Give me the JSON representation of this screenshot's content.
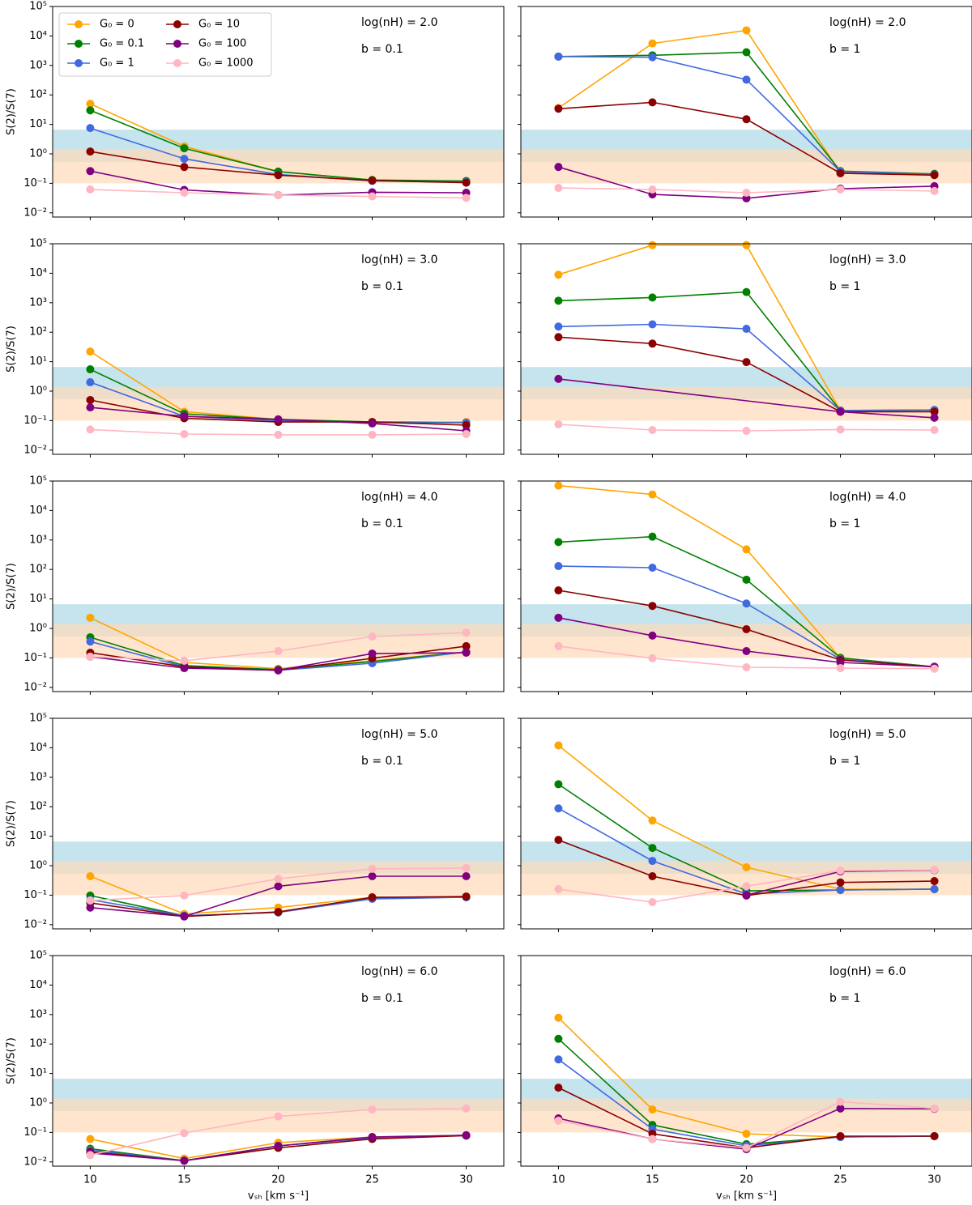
{
  "chart_data": [
    {
      "type": "line",
      "annotations": [
        "log(nH) = 2.0",
        "b = 0.1"
      ],
      "ylabel": "S(2)/S(7)",
      "log_scale": true,
      "legend": "upper left",
      "legend_ncol": 2,
      "x": [
        10,
        15,
        20,
        25,
        30
      ],
      "xlim": [
        8,
        32
      ],
      "xticks": [
        10,
        15,
        20,
        25,
        30
      ],
      "ylim": [
        0.0072,
        100000
      ],
      "yticks": [
        {
          "value": 0.01,
          "label": "10⁻²"
        },
        {
          "value": 0.1,
          "label": "10⁻¹"
        },
        {
          "value": 1,
          "label": "10⁰"
        },
        {
          "value": 10,
          "label": "10¹"
        },
        {
          "value": 100,
          "label": "10²"
        },
        {
          "value": 1000,
          "label": "10³"
        },
        {
          "value": 10000,
          "label": "10⁴"
        },
        {
          "value": 100000,
          "label": "10⁵"
        }
      ],
      "bands": [
        {
          "range": [
            0.53,
            6.6
          ],
          "color": "#add8e6"
        },
        {
          "range": [
            0.1,
            1.4
          ],
          "color": "#ffdab9"
        }
      ],
      "series": [
        {
          "name": "G₀ = 0",
          "color": "#ffa500",
          "values": [
            50,
            1.8,
            0.25,
            0.13,
            0.11
          ]
        },
        {
          "name": "G₀ = 0.1",
          "color": "#008000",
          "values": [
            30,
            1.55,
            0.25,
            0.13,
            0.12
          ]
        },
        {
          "name": "G₀ = 1",
          "color": "#4169e1",
          "values": [
            7.5,
            0.68,
            0.2,
            0.12,
            0.11
          ]
        },
        {
          "name": "G₀ = 10",
          "color": "#8b0000",
          "values": [
            1.2,
            0.36,
            0.19,
            0.125,
            0.105
          ]
        },
        {
          "name": "G₀ = 100",
          "color": "#800080",
          "values": [
            0.26,
            0.06,
            0.04,
            0.05,
            0.048
          ]
        },
        {
          "name": "G₀ = 1000",
          "color": "#ffb6c1",
          "values": [
            0.062,
            0.048,
            0.04,
            0.036,
            0.032
          ]
        }
      ]
    },
    {
      "type": "line",
      "annotations": [
        "log(nH) = 2.0",
        "b = 1"
      ],
      "log_scale": true,
      "x": [
        10,
        15,
        20,
        25,
        30
      ],
      "xlim": [
        8,
        32
      ],
      "xticks": [
        10,
        15,
        20,
        25,
        30
      ],
      "ylim": [
        0.0072,
        100000
      ],
      "yticks": [
        0.01,
        0.1,
        1,
        10,
        100,
        1000,
        10000,
        100000
      ],
      "series": [
        {
          "values": [
            36,
            5600,
            15500,
            0.23,
            0.2
          ]
        },
        {
          "values": [
            2000,
            2200,
            2800,
            0.26,
            0.21
          ]
        },
        {
          "values": [
            2000,
            1900,
            330,
            0.25,
            0.2
          ]
        },
        {
          "values": [
            34,
            56,
            15,
            0.22,
            0.19
          ]
        },
        {
          "values": [
            0.36,
            0.042,
            0.031,
            0.066,
            0.08
          ]
        },
        {
          "values": [
            0.07,
            0.062,
            0.048,
            0.062,
            0.055
          ]
        }
      ]
    },
    {
      "type": "line",
      "annotations": [
        "log(nH) = 3.0",
        "b = 0.1"
      ],
      "ylabel": "S(2)/S(7)",
      "log_scale": true,
      "x": [
        10,
        15,
        20,
        25,
        30
      ],
      "xlim": [
        8,
        32
      ],
      "xticks": [
        10,
        15,
        20,
        25,
        30
      ],
      "ylim": [
        0.0072,
        100000
      ],
      "yticks": [
        {
          "value": 0.01,
          "label": "10⁻²"
        },
        {
          "value": 0.1,
          "label": "10⁻¹"
        },
        {
          "value": 1,
          "label": "10⁰"
        },
        {
          "value": 10,
          "label": "10¹"
        },
        {
          "value": 100,
          "label": "10²"
        },
        {
          "value": 1000,
          "label": "10³"
        },
        {
          "value": 10000,
          "label": "10⁴"
        },
        {
          "value": 100000,
          "label": "10⁵"
        }
      ],
      "series": [
        {
          "values": [
            22,
            0.2,
            0.11,
            0.09,
            0.09
          ]
        },
        {
          "values": [
            5.5,
            0.17,
            0.11,
            0.09,
            0.085
          ]
        },
        {
          "values": [
            2,
            0.14,
            0.1,
            0.085,
            0.085
          ]
        },
        {
          "values": [
            0.5,
            0.12,
            0.09,
            0.09,
            0.07
          ]
        },
        {
          "values": [
            0.28,
            0.14,
            0.11,
            0.08,
            0.045
          ]
        },
        {
          "values": [
            0.05,
            0.035,
            0.033,
            0.033,
            0.035
          ]
        }
      ]
    },
    {
      "type": "line",
      "annotations": [
        "log(nH) = 3.0",
        "b = 1"
      ],
      "log_scale": true,
      "x": [
        10,
        15,
        20,
        25,
        30
      ],
      "xlim": [
        8,
        32
      ],
      "xticks": [
        10,
        15,
        20,
        25,
        30
      ],
      "ylim": [
        0.0072,
        100000
      ],
      "yticks": [
        0.01,
        0.1,
        1,
        10,
        100,
        1000,
        10000,
        100000
      ],
      "series": [
        {
          "values": [
            8900,
            90000,
            90000,
            0.22,
            0.22
          ]
        },
        {
          "values": [
            1170,
            1500,
            2300,
            0.22,
            0.23
          ]
        },
        {
          "values": [
            155,
            185,
            130,
            0.22,
            0.23
          ]
        },
        {
          "values": [
            68,
            41,
            9.7,
            0.2,
            0.2
          ]
        },
        {
          "x": [
            10,
            25,
            30
          ],
          "values": [
            2.6,
            0.2,
            0.125
          ]
        },
        {
          "values": [
            0.075,
            0.048,
            0.045,
            0.05,
            0.048
          ]
        }
      ]
    },
    {
      "type": "line",
      "annotations": [
        "log(nH) = 4.0",
        "b = 0.1"
      ],
      "ylabel": "S(2)/S(7)",
      "log_scale": true,
      "x": [
        10,
        15,
        20,
        25,
        30
      ],
      "xlim": [
        8,
        32
      ],
      "xticks": [
        10,
        15,
        20,
        25,
        30
      ],
      "ylim": [
        0.0072,
        100000
      ],
      "yticks": [
        {
          "value": 0.01,
          "label": "10⁻²"
        },
        {
          "value": 0.1,
          "label": "10⁻¹"
        },
        {
          "value": 1,
          "label": "10⁰"
        },
        {
          "value": 10,
          "label": "10¹"
        },
        {
          "value": 100,
          "label": "10²"
        },
        {
          "value": 1000,
          "label": "10³"
        },
        {
          "value": 10000,
          "label": "10⁴"
        },
        {
          "value": 100000,
          "label": "10⁵"
        }
      ],
      "series": [
        {
          "values": [
            2.3,
            0.07,
            0.043,
            0.08,
            0.16
          ]
        },
        {
          "values": [
            0.5,
            0.055,
            0.04,
            0.075,
            0.16
          ]
        },
        {
          "values": [
            0.36,
            0.05,
            0.038,
            0.066,
            0.16
          ]
        },
        {
          "values": [
            0.15,
            0.05,
            0.038,
            0.097,
            0.25
          ]
        },
        {
          "values": [
            0.11,
            0.045,
            0.038,
            0.14,
            0.15
          ]
        },
        {
          "values": [
            0.11,
            0.08,
            0.17,
            0.53,
            0.72
          ]
        }
      ]
    },
    {
      "type": "line",
      "annotations": [
        "log(nH) = 4.0",
        "b = 1"
      ],
      "log_scale": true,
      "x": [
        10,
        15,
        20,
        25,
        30
      ],
      "xlim": [
        8,
        32
      ],
      "xticks": [
        10,
        15,
        20,
        25,
        30
      ],
      "ylim": [
        0.0072,
        100000
      ],
      "yticks": [
        0.01,
        0.1,
        1,
        10,
        100,
        1000,
        10000,
        100000
      ],
      "series": [
        {
          "values": [
            70000,
            35000,
            480,
            0.1,
            0.05
          ]
        },
        {
          "values": [
            850,
            1300,
            45,
            0.1,
            0.05
          ]
        },
        {
          "values": [
            130,
            115,
            7,
            0.09,
            0.05
          ]
        },
        {
          "values": [
            19.5,
            5.8,
            0.94,
            0.085,
            0.05
          ]
        },
        {
          "values": [
            2.3,
            0.57,
            0.17,
            0.07,
            0.05
          ]
        },
        {
          "values": [
            0.25,
            0.097,
            0.048,
            0.045,
            0.043
          ]
        }
      ]
    },
    {
      "type": "line",
      "annotations": [
        "log(nH) = 5.0",
        "b = 0.1"
      ],
      "ylabel": "S(2)/S(7)",
      "log_scale": true,
      "x": [
        10,
        15,
        20,
        25,
        30
      ],
      "xlim": [
        8,
        32
      ],
      "xticks": [
        10,
        15,
        20,
        25,
        30
      ],
      "ylim": [
        0.0072,
        100000
      ],
      "yticks": [
        {
          "value": 0.01,
          "label": "10⁻²"
        },
        {
          "value": 0.1,
          "label": "10⁻¹"
        },
        {
          "value": 1,
          "label": "10⁰"
        },
        {
          "value": 10,
          "label": "10¹"
        },
        {
          "value": 100,
          "label": "10²"
        },
        {
          "value": 1000,
          "label": "10³"
        },
        {
          "value": 10000,
          "label": "10⁴"
        },
        {
          "value": 100000,
          "label": "10⁵"
        }
      ],
      "series": [
        {
          "values": [
            0.44,
            0.023,
            0.038,
            0.085,
            0.09
          ]
        },
        {
          "values": [
            0.097,
            0.02,
            0.026,
            0.08,
            0.085
          ]
        },
        {
          "values": [
            0.07,
            0.02,
            0.026,
            0.075,
            0.085
          ]
        },
        {
          "values": [
            0.055,
            0.019,
            0.027,
            0.085,
            0.09
          ]
        },
        {
          "values": [
            0.038,
            0.019,
            0.2,
            0.44,
            0.44
          ]
        },
        {
          "values": [
            0.066,
            0.097,
            0.36,
            0.78,
            0.83
          ]
        }
      ]
    },
    {
      "type": "line",
      "annotations": [
        "log(nH) = 5.0",
        "b = 1"
      ],
      "log_scale": true,
      "x": [
        10,
        15,
        20,
        25,
        30
      ],
      "xlim": [
        8,
        32
      ],
      "xticks": [
        10,
        15,
        20,
        25,
        30
      ],
      "ylim": [
        0.0072,
        100000
      ],
      "yticks": [
        0.01,
        0.1,
        1,
        10,
        100,
        1000,
        10000,
        100000
      ],
      "series": [
        {
          "values": [
            12000,
            34,
            0.88,
            0.16,
            0.16
          ]
        },
        {
          "values": [
            580,
            4,
            0.14,
            0.15,
            0.16
          ]
        },
        {
          "values": [
            88,
            1.45,
            0.11,
            0.15,
            0.16
          ]
        },
        {
          "values": [
            7.5,
            0.44,
            0.097,
            0.27,
            0.3
          ]
        },
        {
          "x": [
            20,
            25,
            30
          ],
          "values": [
            0.1,
            0.64,
            0.7
          ]
        },
        {
          "values": [
            0.16,
            0.058,
            0.2,
            0.68,
            0.72
          ]
        }
      ]
    },
    {
      "type": "line",
      "annotations": [
        "log(nH) = 6.0",
        "b = 0.1"
      ],
      "ylabel": "S(2)/S(7)",
      "xlabel": "vₛₕ [km s⁻¹]",
      "log_scale": true,
      "x": [
        10,
        15,
        20,
        25,
        30
      ],
      "xlim": [
        8,
        32
      ],
      "xticks": [
        10,
        15,
        20,
        25,
        30
      ],
      "ylim": [
        0.0072,
        100000
      ],
      "yticks": [
        {
          "value": 0.01,
          "label": "10⁻²"
        },
        {
          "value": 0.1,
          "label": "10⁻¹"
        },
        {
          "value": 1,
          "label": "10⁰"
        },
        {
          "value": 10,
          "label": "10¹"
        },
        {
          "value": 100,
          "label": "10²"
        },
        {
          "value": 1000,
          "label": "10³"
        },
        {
          "value": 10000,
          "label": "10⁴"
        },
        {
          "value": 100000,
          "label": "10⁵"
        }
      ],
      "series": [
        {
          "values": [
            0.06,
            0.013,
            0.045,
            0.07,
            0.08
          ]
        },
        {
          "values": [
            0.028,
            0.011,
            0.035,
            0.065,
            0.08
          ]
        },
        {
          "values": [
            0.025,
            0.011,
            0.035,
            0.065,
            0.08
          ]
        },
        {
          "values": [
            0.022,
            0.011,
            0.03,
            0.06,
            0.078
          ]
        },
        {
          "values": [
            0.02,
            0.011,
            0.035,
            0.07,
            0.08
          ]
        },
        {
          "values": [
            0.017,
            0.095,
            0.35,
            0.6,
            0.65
          ]
        }
      ]
    },
    {
      "type": "line",
      "annotations": [
        "log(nH) = 6.0",
        "b = 1"
      ],
      "xlabel": "vₛₕ [km s⁻¹]",
      "log_scale": true,
      "x": [
        10,
        15,
        20,
        25,
        30
      ],
      "xlim": [
        8,
        32
      ],
      "xticks": [
        10,
        15,
        20,
        25,
        30
      ],
      "ylim": [
        0.0072,
        100000
      ],
      "yticks": [
        0.01,
        0.1,
        1,
        10,
        100,
        1000,
        10000,
        100000
      ],
      "series": [
        {
          "values": [
            780,
            0.6,
            0.09,
            0.07,
            0.075
          ]
        },
        {
          "values": [
            150,
            0.18,
            0.04,
            0.07,
            0.075
          ]
        },
        {
          "values": [
            30,
            0.13,
            0.035,
            0.07,
            0.075
          ]
        },
        {
          "values": [
            3.3,
            0.09,
            0.03,
            0.075,
            0.075
          ]
        },
        {
          "values": [
            0.3,
            0.06,
            0.027,
            0.65,
            0.63
          ]
        },
        {
          "values": [
            0.25,
            0.06,
            0.03,
            1.1,
            0.65
          ]
        }
      ]
    }
  ]
}
